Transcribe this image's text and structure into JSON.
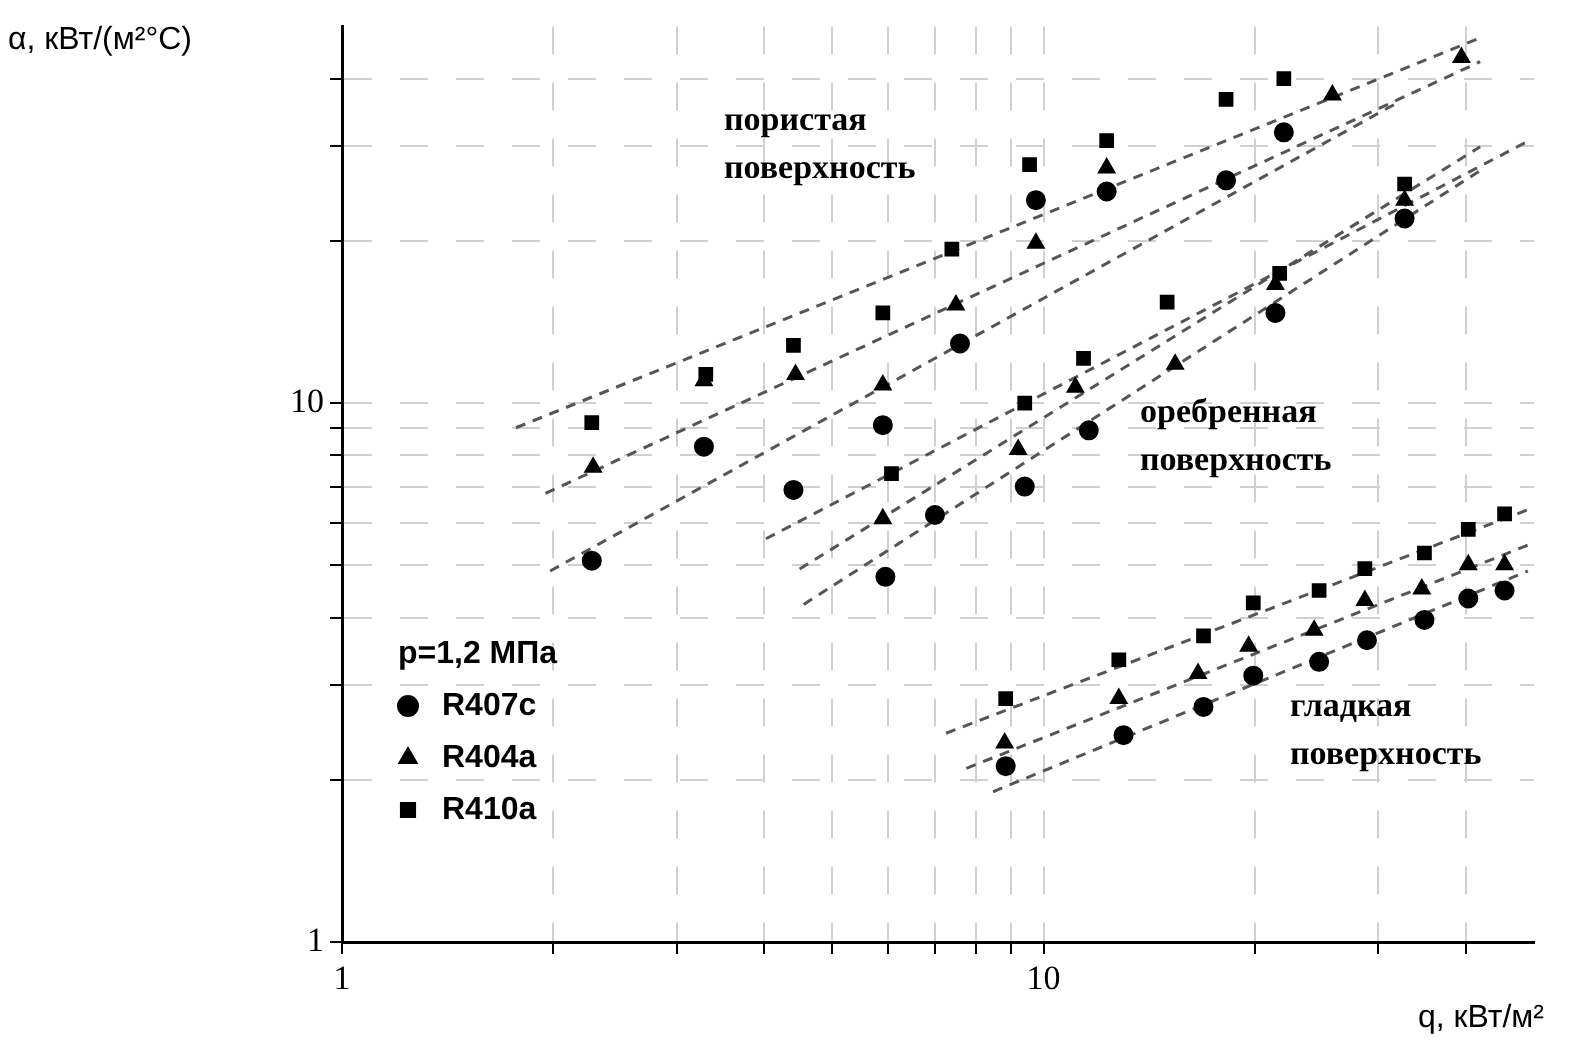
{
  "chart_data": {
    "type": "scatter",
    "xlabel": "q, кВт/м²",
    "ylabel": "α, кВт/(м²°С)",
    "legend_title": "p=1,2 МПа",
    "legend": "bottom left",
    "log": "xy",
    "grid": true,
    "xlim": [
      1,
      50
    ],
    "ylim": [
      1,
      50
    ],
    "xticks": [
      1,
      {
        "value": 2,
        "label": null
      },
      {
        "value": 3,
        "label": null
      },
      {
        "value": 4,
        "label": null
      },
      {
        "value": 5,
        "label": null
      },
      {
        "value": 6,
        "label": null
      },
      {
        "value": 7,
        "label": null
      },
      {
        "value": 8,
        "label": null
      },
      {
        "value": 9,
        "label": null
      },
      10,
      {
        "value": 20,
        "label": null
      },
      {
        "value": 30,
        "label": null
      },
      {
        "value": 40,
        "label": null
      }
    ],
    "yticks": [
      1,
      {
        "value": 2,
        "label": null
      },
      {
        "value": 3,
        "label": null
      },
      {
        "value": 4,
        "label": null
      },
      {
        "value": 5,
        "label": null
      },
      {
        "value": 6,
        "label": null
      },
      {
        "value": 7,
        "label": null
      },
      {
        "value": 8,
        "label": null
      },
      {
        "value": 9,
        "label": null
      },
      10,
      {
        "value": 20,
        "label": null
      },
      {
        "value": 30,
        "label": null
      },
      {
        "value": 40,
        "label": null
      }
    ],
    "annotations": [
      "пористая поверхность",
      "оребренная поверхность",
      "гладкая поверхность"
    ],
    "series": [
      {
        "name": "R407c",
        "type": "scatter",
        "marker": "circle",
        "color": "#000000",
        "x": [
          2.27,
          3.28,
          4.4,
          5.9,
          7.6,
          9.75,
          12.3,
          18.2,
          22
        ],
        "values": [
          5.1,
          8.3,
          6.9,
          9.1,
          12.9,
          23.8,
          24.7,
          25.9,
          31.8
        ]
      },
      {
        "name": "R404a",
        "type": "scatter",
        "marker": "triangle",
        "color": "#000000",
        "x": [
          2.28,
          3.28,
          4.43,
          5.9,
          7.5,
          9.75,
          12.3,
          25.8,
          39.4
        ],
        "values": [
          7.6,
          11,
          11.3,
          10.8,
          15.2,
          19.8,
          27.3,
          37.3,
          43.8
        ]
      },
      {
        "name": "R410a",
        "type": "scatter",
        "marker": "square",
        "color": "#000000",
        "x": [
          2.27,
          3.3,
          4.4,
          5.9,
          7.4,
          9.55,
          12.3,
          18.2,
          22
        ],
        "values": [
          9.2,
          11.3,
          12.8,
          14.7,
          19.3,
          27.7,
          30.7,
          36.6,
          40
        ]
      },
      {
        "type": "scatter",
        "marker": "circle",
        "color": "#000000",
        "x": [
          5.95,
          7,
          9.4,
          11.6,
          21.4,
          32.7
        ],
        "values": [
          4.76,
          6.2,
          7,
          8.9,
          14.7,
          22
        ]
      },
      {
        "type": "scatter",
        "marker": "triangle",
        "color": "#000000",
        "x": [
          5.9,
          9.2,
          11.1,
          15.4,
          21.4,
          32.7
        ],
        "values": [
          6.1,
          8.2,
          10.7,
          11.8,
          16.6,
          23.8
        ]
      },
      {
        "type": "scatter",
        "marker": "square",
        "color": "#000000",
        "x": [
          6.07,
          9.4,
          11.4,
          15,
          21.7,
          32.7
        ],
        "values": [
          7.4,
          10,
          12.1,
          15.4,
          17.4,
          25.5
        ]
      },
      {
        "type": "scatter",
        "marker": "circle",
        "color": "#000000",
        "x": [
          8.83,
          13,
          16.9,
          19.9,
          24.7,
          28.9,
          34.9,
          40.3,
          45.4
        ],
        "values": [
          2.12,
          2.42,
          2.73,
          3.12,
          3.31,
          3.63,
          3.96,
          4.34,
          4.49
        ]
      },
      {
        "type": "scatter",
        "marker": "triangle",
        "color": "#000000",
        "x": [
          8.8,
          12.8,
          16.6,
          19.6,
          24.3,
          28.7,
          34.6,
          40.3,
          45.4
        ],
        "values": [
          2.34,
          2.83,
          3.15,
          3.54,
          3.79,
          4.3,
          4.52,
          5.01,
          5.01
        ]
      },
      {
        "type": "scatter",
        "marker": "square",
        "color": "#000000",
        "x": [
          8.83,
          12.8,
          16.9,
          19.9,
          24.7,
          28.7,
          34.9,
          40.3,
          45.4
        ],
        "values": [
          2.83,
          3.34,
          3.7,
          4.26,
          4.49,
          4.93,
          5.27,
          5.83,
          6.23
        ]
      },
      {
        "type": "line",
        "marker": "none",
        "line_style": "dashed",
        "color": "#555555",
        "x": [
          1.77,
          41.9
        ],
        "values": [
          9,
          47.6
        ]
      },
      {
        "type": "line",
        "marker": "none",
        "line_style": "dashed",
        "color": "#555555",
        "x": [
          1.95,
          41.9
        ],
        "values": [
          6.8,
          43
        ]
      },
      {
        "type": "line",
        "marker": "none",
        "line_style": "dashed",
        "color": "#555555",
        "x": [
          1.98,
          32.2
        ],
        "values": [
          4.88,
          36.3
        ]
      },
      {
        "type": "line",
        "marker": "none",
        "line_style": "dashed",
        "color": "#555555",
        "x": [
          4.02,
          49
        ],
        "values": [
          5.6,
          30.6
        ]
      },
      {
        "type": "line",
        "marker": "none",
        "line_style": "dashed",
        "color": "#555555",
        "x": [
          4.49,
          41.9
        ],
        "values": [
          4.92,
          29.9
        ]
      },
      {
        "type": "line",
        "marker": "none",
        "line_style": "dashed",
        "color": "#555555",
        "x": [
          4.55,
          41.9
        ],
        "values": [
          4.23,
          27
        ]
      },
      {
        "type": "line",
        "marker": "none",
        "line_style": "dashed",
        "color": "#555555",
        "x": [
          7.26,
          49
        ],
        "values": [
          2.44,
          6.34
        ]
      },
      {
        "type": "line",
        "marker": "none",
        "line_style": "dashed",
        "color": "#555555",
        "x": [
          7.76,
          49
        ],
        "values": [
          2.1,
          5.45
        ]
      },
      {
        "type": "line",
        "marker": "none",
        "line_style": "dashed",
        "color": "#555555",
        "x": [
          8.47,
          49
        ],
        "values": [
          1.9,
          4.88
        ]
      }
    ]
  }
}
